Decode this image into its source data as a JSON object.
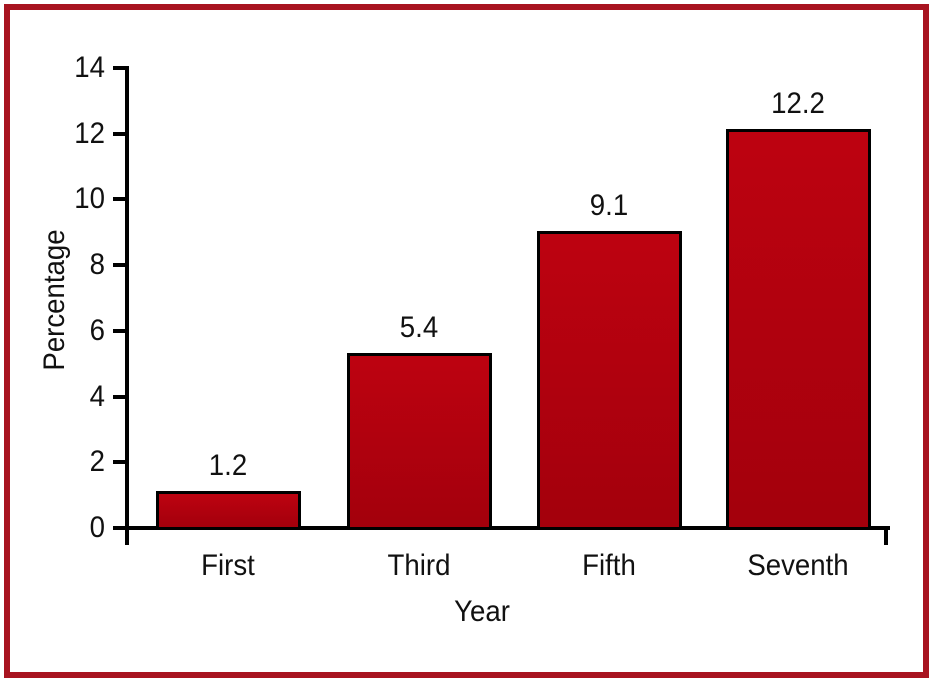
{
  "chart_data": {
    "type": "bar",
    "categories": [
      "First",
      "Third",
      "Fifth",
      "Seventh"
    ],
    "values": [
      1.2,
      5.4,
      9.1,
      12.2
    ],
    "value_labels": [
      "1.2",
      "5.4",
      "9.1",
      "12.2"
    ],
    "title": "",
    "xlabel": "Year",
    "ylabel": "Percentage",
    "ylim": [
      0,
      14
    ],
    "yticks": [
      0,
      2,
      4,
      6,
      8,
      10,
      12,
      14
    ],
    "grid": false,
    "legend": "none",
    "colors": {
      "bar_fill_top": "#bd0210",
      "bar_fill_bottom": "#a3000c",
      "bar_border": "#000000",
      "axis": "#000000",
      "text": "#111111",
      "frame_border": "#a81420",
      "background": "#ffffff"
    }
  }
}
